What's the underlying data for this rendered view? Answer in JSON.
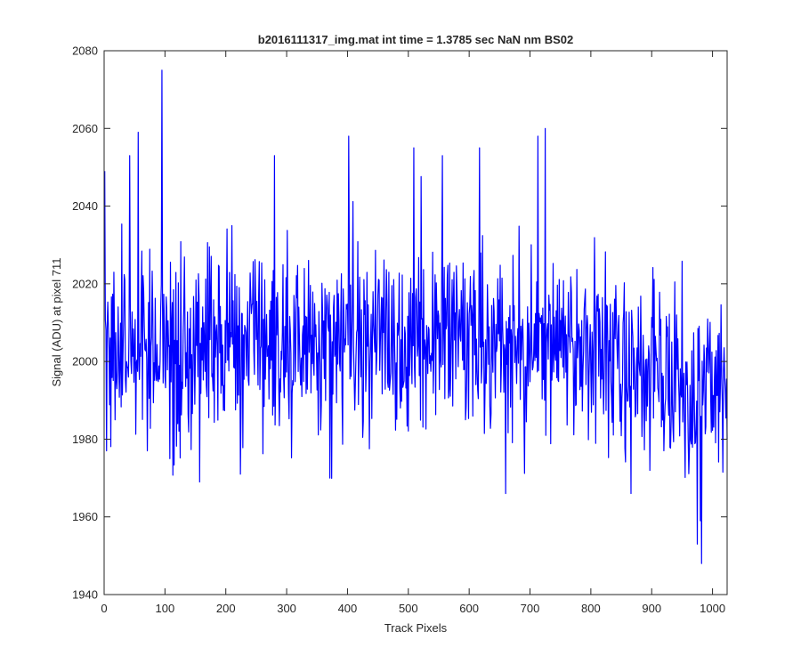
{
  "chart_data": {
    "type": "line",
    "title": "b2016111317_img.mat int time = 1.3785 sec  NaN nm BS02",
    "xlabel": "Track Pixels",
    "ylabel": "Signal (ADU) at pixel 711",
    "xlim": [
      0,
      1024
    ],
    "ylim": [
      1940,
      2080
    ],
    "xticks": [
      0,
      100,
      200,
      300,
      400,
      500,
      600,
      700,
      800,
      900,
      1000
    ],
    "yticks": [
      1940,
      1960,
      1980,
      2000,
      2020,
      2040,
      2060,
      2080
    ],
    "xtick_labels": [
      "0",
      "100",
      "200",
      "300",
      "400",
      "500",
      "600",
      "700",
      "800",
      "900",
      "1000"
    ],
    "ytick_labels": [
      "1940",
      "1960",
      "1980",
      "2000",
      "2020",
      "2040",
      "2060",
      "2080"
    ],
    "grid": false,
    "legend": "none",
    "line_color": "#0000ff",
    "series": [
      {
        "x_start": 1,
        "x_step": 1,
        "approx_mean": 2003,
        "approx_noise_sd": 12,
        "trend": "flat around 2003-2005 to x~760, declining toward ~1990 by x=1024",
        "notable_points": [
          {
            "x": 1,
            "y": 2049
          },
          {
            "x": 4,
            "y": 1977
          },
          {
            "x": 42,
            "y": 2053
          },
          {
            "x": 56,
            "y": 2059
          },
          {
            "x": 71,
            "y": 1977
          },
          {
            "x": 95,
            "y": 2079
          },
          {
            "x": 108,
            "y": 1975
          },
          {
            "x": 157,
            "y": 1969
          },
          {
            "x": 224,
            "y": 1971
          },
          {
            "x": 280,
            "y": 2053
          },
          {
            "x": 371,
            "y": 1970
          },
          {
            "x": 402,
            "y": 2058
          },
          {
            "x": 509,
            "y": 2055
          },
          {
            "x": 556,
            "y": 2053
          },
          {
            "x": 617,
            "y": 2055
          },
          {
            "x": 660,
            "y": 1966
          },
          {
            "x": 713,
            "y": 2058
          },
          {
            "x": 725,
            "y": 2060
          },
          {
            "x": 866,
            "y": 1966
          },
          {
            "x": 975,
            "y": 1953
          },
          {
            "x": 980,
            "y": 1959
          },
          {
            "x": 1024,
            "y": 1980
          }
        ]
      }
    ]
  }
}
